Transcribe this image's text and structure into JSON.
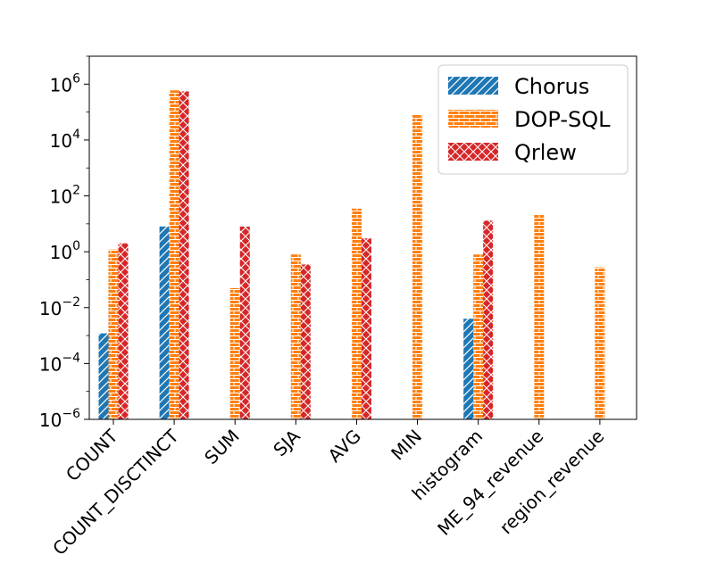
{
  "chart_data": {
    "type": "bar",
    "yscale": "log",
    "title": "",
    "xlabel": "",
    "ylabel": "",
    "ylim": [
      1e-06,
      10000000.0
    ],
    "yticks": [
      {
        "value": 1e-06,
        "base": "10",
        "exp": "−6"
      },
      {
        "value": 0.0001,
        "base": "10",
        "exp": "−4"
      },
      {
        "value": 0.01,
        "base": "10",
        "exp": "−2"
      },
      {
        "value": 1,
        "base": "10",
        "exp": "0"
      },
      {
        "value": 100,
        "base": "10",
        "exp": "2"
      },
      {
        "value": 10000,
        "base": "10",
        "exp": "4"
      },
      {
        "value": 1000000,
        "base": "10",
        "exp": "6"
      }
    ],
    "categories": [
      "COUNT",
      "COUNT_DISCTINCT",
      "SUM",
      "SJA",
      "AVG",
      "MIN",
      "histogram",
      "ME_94_revenue",
      "region_revenue"
    ],
    "series": [
      {
        "name": "Chorus",
        "color": "#1f77b4",
        "hatch": "diagonal",
        "values": [
          0.0012,
          8.0,
          null,
          null,
          null,
          null,
          0.004,
          null,
          null
        ]
      },
      {
        "name": "DOP-SQL",
        "color": "#ff7f0e",
        "hatch": "brick",
        "values": [
          1.2,
          600000,
          0.05,
          0.8,
          35,
          80000,
          0.8,
          22,
          0.28
        ]
      },
      {
        "name": "Qrlew",
        "color": "#d62728",
        "hatch": "cross",
        "values": [
          2.0,
          550000,
          8.0,
          0.35,
          3.0,
          null,
          13,
          null,
          null
        ]
      }
    ],
    "legend_position": "top-right",
    "grid": false
  }
}
